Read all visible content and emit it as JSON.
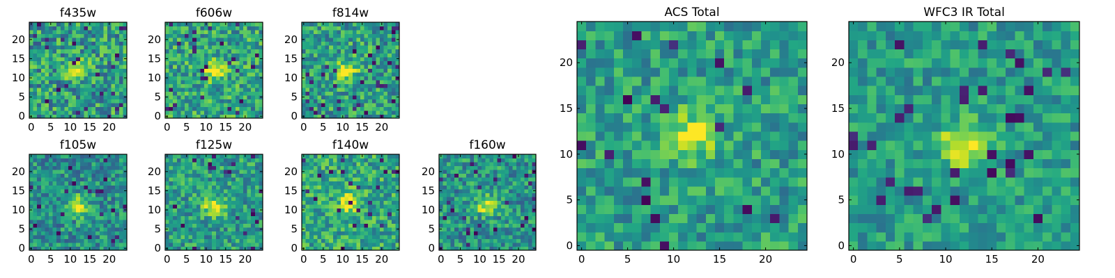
{
  "chart_data": {
    "type": "heatmap",
    "colormap": "viridis",
    "grid_size": 25,
    "xlim": [
      0,
      24
    ],
    "ylim": [
      0,
      24
    ],
    "panels": [
      {
        "id": "f435w",
        "title": "f435w",
        "xticks": [
          0,
          5,
          10,
          15,
          20
        ],
        "yticks": [
          0,
          5,
          10,
          15,
          20
        ],
        "peak": [
          12,
          12
        ],
        "noise": 0.55,
        "signal": 0.5,
        "background": 0.55
      },
      {
        "id": "f606w",
        "title": "f606w",
        "xticks": [
          0,
          5,
          10,
          15,
          20
        ],
        "yticks": [
          0,
          5,
          10,
          15,
          20
        ],
        "peak": [
          12,
          12
        ],
        "noise": 0.5,
        "signal": 0.5,
        "background": 0.58
      },
      {
        "id": "f814w",
        "title": "f814w",
        "xticks": [
          0,
          5,
          10,
          15,
          20
        ],
        "yticks": [
          0,
          5,
          10,
          15,
          20
        ],
        "peak": [
          11,
          12
        ],
        "noise": 0.5,
        "signal": 0.5,
        "background": 0.56
      },
      {
        "id": "f105w",
        "title": "f105w",
        "xticks": [
          0,
          5,
          10,
          15,
          20
        ],
        "yticks": [
          0,
          5,
          10,
          15,
          20
        ],
        "peak": [
          12,
          11
        ],
        "noise": 0.45,
        "signal": 0.5,
        "background": 0.5
      },
      {
        "id": "f125w",
        "title": "f125w",
        "xticks": [
          0,
          5,
          10,
          15,
          20
        ],
        "yticks": [
          0,
          5,
          10,
          15,
          20
        ],
        "peak": [
          12,
          11
        ],
        "noise": 0.45,
        "signal": 0.5,
        "background": 0.55
      },
      {
        "id": "f140w",
        "title": "f140w",
        "xticks": [
          0,
          5,
          10,
          15,
          20
        ],
        "yticks": [
          0,
          5,
          10,
          15,
          20
        ],
        "peak": [
          12,
          12
        ],
        "noise": 0.45,
        "signal": 0.45,
        "background": 0.6
      },
      {
        "id": "f160w",
        "title": "f160w",
        "xticks": [
          0,
          5,
          10,
          15,
          20
        ],
        "yticks": [
          0,
          5,
          10,
          15,
          20
        ],
        "peak": [
          12,
          11
        ],
        "noise": 0.45,
        "signal": 0.5,
        "background": 0.52
      },
      {
        "id": "acs-total",
        "title": "ACS Total",
        "xticks": [
          0,
          5,
          10,
          15,
          20
        ],
        "yticks": [
          0,
          5,
          10,
          15,
          20
        ],
        "peak": [
          12,
          12
        ],
        "noise": 0.4,
        "signal": 0.45,
        "background": 0.56
      },
      {
        "id": "wfc3-ir-total",
        "title": "WFC3 IR Total",
        "xticks": [
          0,
          5,
          10,
          15,
          20
        ],
        "yticks": [
          0,
          5,
          10,
          15,
          20
        ],
        "peak": [
          12,
          11
        ],
        "noise": 0.35,
        "signal": 0.5,
        "background": 0.55
      }
    ]
  }
}
